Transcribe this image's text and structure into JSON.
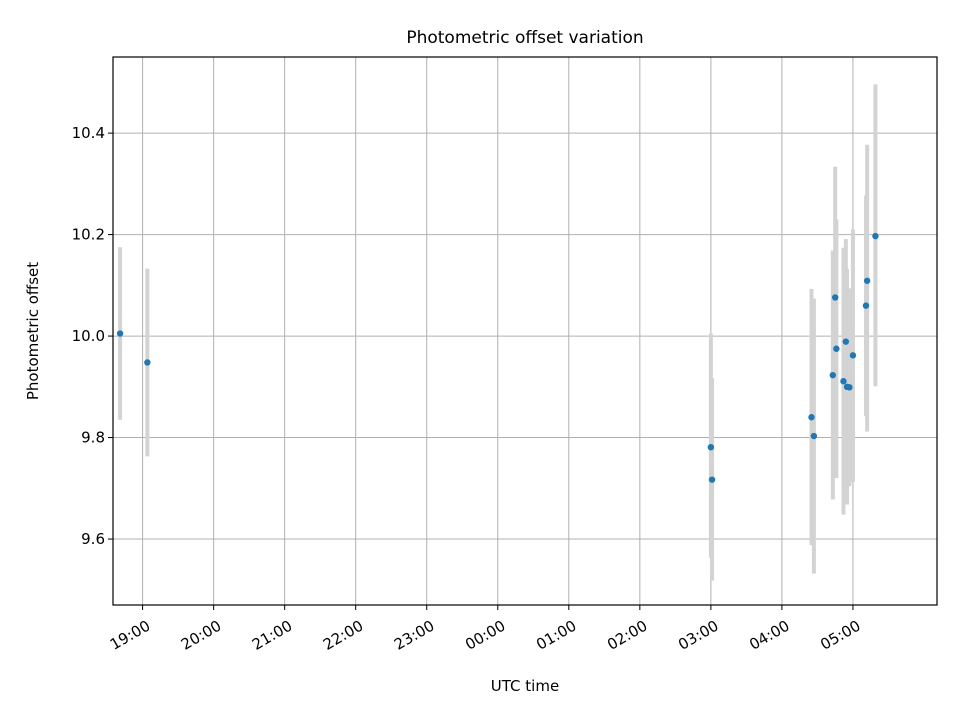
{
  "chart_data": {
    "type": "scatter",
    "title": "Photometric offset variation",
    "xlabel": "UTC time",
    "ylabel": "Photometric offset",
    "x_is_time": true,
    "xlim": [
      "18:35",
      "06:11"
    ],
    "ylim": [
      9.47,
      10.55
    ],
    "x_ticks": [
      "19:00",
      "20:00",
      "21:00",
      "22:00",
      "23:00",
      "00:00",
      "01:00",
      "02:00",
      "03:00",
      "04:00",
      "05:00"
    ],
    "y_ticks": [
      9.6,
      9.8,
      10.0,
      10.2,
      10.4
    ],
    "y_tick_labels": [
      "9.6",
      "9.8",
      "10.0",
      "10.2",
      "10.4"
    ],
    "grid": true,
    "point_color": "#1f77b4",
    "errorbar_color": "#d3d3d3",
    "points": [
      {
        "t": "18:41",
        "y": 10.005,
        "ylo": 9.835,
        "yhi": 10.175
      },
      {
        "t": "19:04",
        "y": 9.948,
        "ylo": 9.763,
        "yhi": 10.133
      },
      {
        "t": "03:00",
        "y": 9.781,
        "ylo": 9.563,
        "yhi": 10.005
      },
      {
        "t": "03:01",
        "y": 9.717,
        "ylo": 9.518,
        "yhi": 9.917
      },
      {
        "t": "04:25",
        "y": 9.84,
        "ylo": 9.588,
        "yhi": 10.093
      },
      {
        "t": "04:27",
        "y": 9.803,
        "ylo": 9.532,
        "yhi": 10.074
      },
      {
        "t": "04:43",
        "y": 9.923,
        "ylo": 9.678,
        "yhi": 10.169
      },
      {
        "t": "04:45",
        "y": 10.076,
        "ylo": 9.818,
        "yhi": 10.334
      },
      {
        "t": "04:46",
        "y": 9.975,
        "ylo": 9.72,
        "yhi": 10.23
      },
      {
        "t": "04:52",
        "y": 9.911,
        "ylo": 9.648,
        "yhi": 10.174
      },
      {
        "t": "04:54",
        "y": 9.989,
        "ylo": 9.795,
        "yhi": 10.191
      },
      {
        "t": "04:55",
        "y": 9.9,
        "ylo": 9.668,
        "yhi": 10.132
      },
      {
        "t": "04:57",
        "y": 9.899,
        "ylo": 9.704,
        "yhi": 10.094
      },
      {
        "t": "05:00",
        "y": 9.962,
        "ylo": 9.713,
        "yhi": 10.21
      },
      {
        "t": "05:11",
        "y": 10.06,
        "ylo": 9.842,
        "yhi": 10.277
      },
      {
        "t": "05:12",
        "y": 10.109,
        "ylo": 9.812,
        "yhi": 10.377
      },
      {
        "t": "05:19",
        "y": 10.197,
        "ylo": 9.901,
        "yhi": 10.496
      }
    ]
  }
}
